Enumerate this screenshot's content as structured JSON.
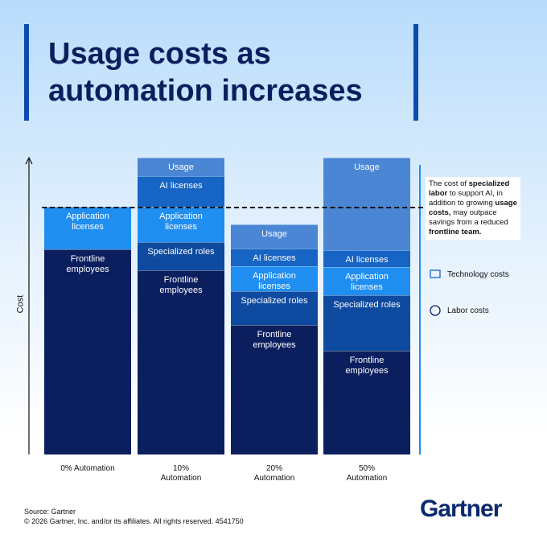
{
  "chart_data": {
    "type": "stacked-bar",
    "title": "Usage costs as automation increases",
    "y_label": "Cost",
    "categories": [
      "0% Automation",
      "10% Automation",
      "20% Automation",
      "50% Automation"
    ],
    "ylim": [
      0,
      370
    ],
    "series": [
      {
        "name": "Frontline employees",
        "color": "#0b1f5e",
        "values": [
          255,
          229,
          161,
          129
        ]
      },
      {
        "name": "Specialized roles",
        "color": "#0d4aa0",
        "values": [
          null,
          35,
          42,
          69
        ]
      },
      {
        "name": "Application licenses",
        "color": "#1f8ef0",
        "values": [
          53,
          44,
          31,
          35
        ]
      },
      {
        "name": "AI licenses",
        "color": "#1664c4",
        "values": [
          null,
          38,
          22,
          21
        ]
      },
      {
        "name": "Usage",
        "color": "#4a86d4",
        "values": [
          null,
          23,
          30,
          115
        ]
      }
    ],
    "reference_line": 308,
    "annotation": [
      "The cost of ",
      "specialized labor",
      " to support AI, in addition to growing ",
      "usage costs,",
      " may outpace savings from a reduced ",
      "frontline team."
    ],
    "legend": [
      "Technology costs",
      "Labor costs"
    ],
    "source": "Source: Gartner",
    "copyright": "© 2026 Gartner, Inc. and/or its affiliates. All rights reserved. 4541750",
    "brand": "Gartner"
  }
}
